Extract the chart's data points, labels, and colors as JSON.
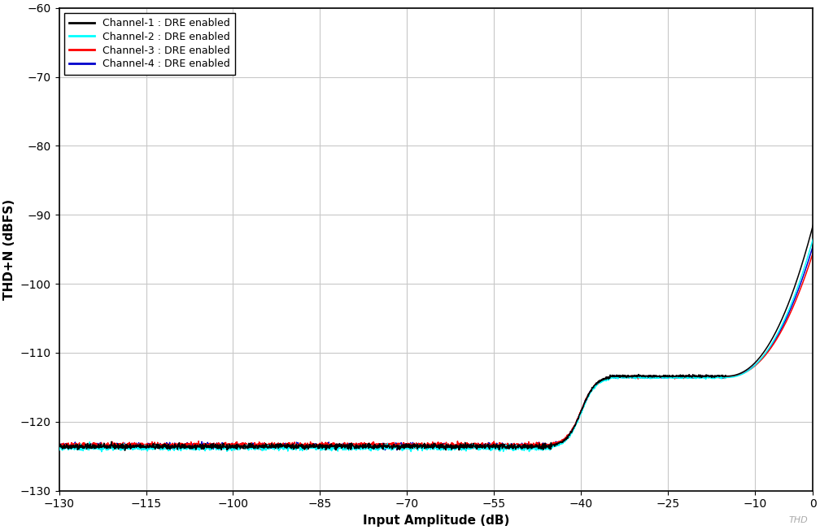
{
  "xlabel": "Input Amplitude (dB)",
  "ylabel": "THD+N (dBFS)",
  "xlim": [
    -130,
    0
  ],
  "ylim": [
    -130,
    -60
  ],
  "xticks": [
    -130,
    -115,
    -100,
    -85,
    -70,
    -55,
    -40,
    -25,
    -10,
    0
  ],
  "yticks": [
    -130,
    -120,
    -110,
    -100,
    -90,
    -80,
    -70,
    -60
  ],
  "background_color": "#ffffff",
  "grid_color": "#c8c8c8",
  "channels": [
    {
      "label": "Channel-1 : DRE enabled",
      "color": "#000000",
      "zorder": 4
    },
    {
      "label": "Channel-2 : DRE enabled",
      "color": "#00ffff",
      "zorder": 3
    },
    {
      "label": "Channel-3 : DRE enabled",
      "color": "#ff0000",
      "zorder": 2
    },
    {
      "label": "Channel-4 : DRE enabled",
      "color": "#0000cc",
      "zorder": 1
    }
  ],
  "watermark": "THD",
  "linewidth": 1.1,
  "noise_floor": -123.5,
  "bump_level": -113.5,
  "bump_start_x": -45,
  "bump_peak_x": -35,
  "plateau_end_x": -15,
  "final_values": [
    -91.5,
    -93.5,
    -95.5,
    -94.5
  ]
}
